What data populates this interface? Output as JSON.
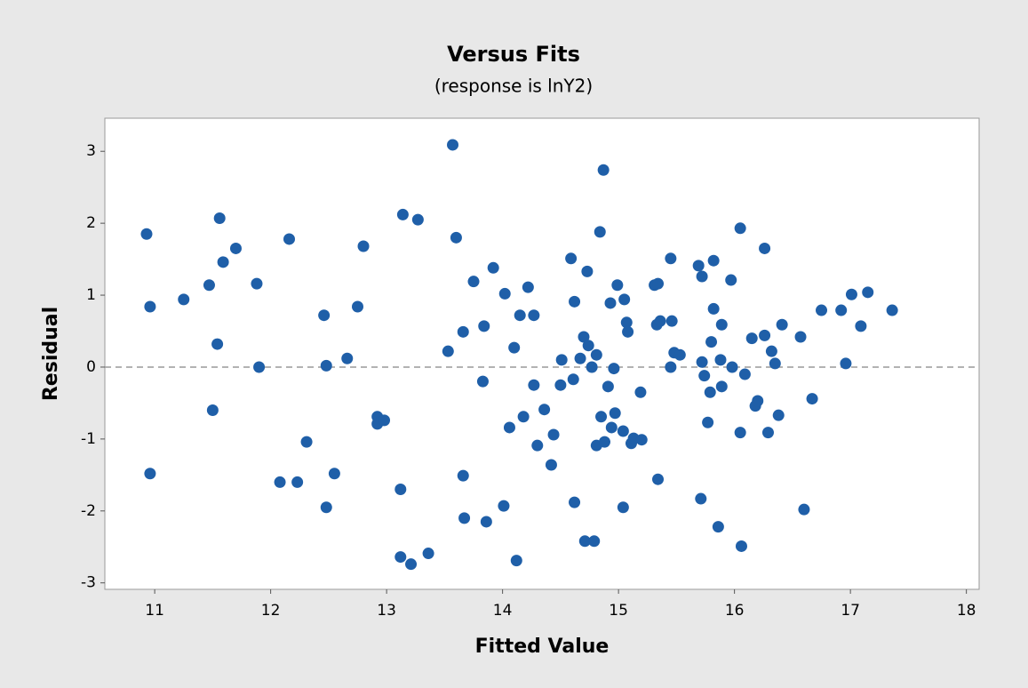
{
  "chart_data": {
    "type": "scatter",
    "title": "Versus Fits",
    "subtitle": "(response is lnY2)",
    "x_label": "Fitted Value",
    "y_label": "Residual",
    "color": "#1f5fa8",
    "reference_line": 0,
    "xlim": [
      10.57,
      18.11
    ],
    "ylim": [
      -3.09,
      3.46
    ],
    "xticks": [
      11,
      12,
      13,
      14,
      15,
      16,
      17,
      18
    ],
    "yticks": [
      -3,
      -2,
      -1,
      0,
      1,
      2,
      3
    ],
    "x": [
      10.93,
      10.96,
      10.96,
      11.25,
      11.47,
      11.5,
      11.54,
      11.56,
      11.59,
      11.7,
      11.88,
      11.9,
      12.08,
      12.16,
      12.23,
      12.31,
      12.46,
      12.48,
      12.48,
      12.55,
      12.66,
      12.75,
      12.8,
      12.92,
      12.92,
      12.98,
      13.12,
      13.14,
      13.12,
      13.21,
      13.27,
      13.36,
      13.53,
      13.57,
      13.6,
      13.66,
      13.66,
      13.67,
      13.75,
      13.83,
      13.84,
      13.86,
      13.92,
      14.01,
      14.02,
      14.06,
      14.1,
      14.12,
      14.15,
      14.18,
      14.22,
      14.27,
      14.27,
      14.3,
      14.36,
      14.42,
      14.44,
      14.5,
      14.51,
      14.59,
      14.61,
      14.62,
      14.62,
      14.67,
      14.7,
      14.71,
      14.73,
      14.74,
      14.77,
      14.79,
      14.81,
      14.81,
      14.84,
      14.85,
      14.87,
      14.88,
      14.91,
      14.93,
      14.94,
      14.96,
      14.97,
      14.99,
      15.05,
      15.07,
      15.08,
      15.04,
      15.11,
      15.13,
      15.04,
      15.2,
      15.19,
      15.31,
      15.33,
      15.34,
      15.34,
      15.36,
      15.45,
      15.45,
      15.46,
      15.48,
      15.53,
      15.69,
      15.71,
      15.72,
      15.72,
      15.74,
      15.77,
      15.79,
      15.8,
      15.82,
      15.82,
      15.86,
      15.88,
      15.89,
      15.89,
      15.97,
      15.98,
      16.05,
      16.06,
      16.05,
      16.09,
      16.15,
      16.18,
      16.2,
      16.26,
      16.26,
      16.29,
      16.32,
      16.35,
      16.38,
      16.41,
      16.57,
      16.6,
      16.67,
      16.75,
      16.92,
      16.96,
      17.01,
      17.09,
      17.15,
      17.36
    ],
    "values": [
      1.85,
      0.84,
      -1.48,
      0.94,
      1.14,
      -0.6,
      0.32,
      2.07,
      1.46,
      1.65,
      1.16,
      0,
      -1.6,
      1.78,
      -1.6,
      -1.04,
      0.72,
      0.02,
      -1.95,
      -1.48,
      0.12,
      0.84,
      1.68,
      -0.69,
      -0.79,
      -0.74,
      -1.7,
      2.12,
      -2.64,
      -2.74,
      2.05,
      -2.59,
      0.22,
      3.09,
      1.8,
      0.49,
      -1.51,
      -2.1,
      1.19,
      -0.2,
      0.57,
      -2.15,
      1.38,
      -1.93,
      1.02,
      -0.84,
      0.27,
      -2.69,
      0.72,
      -0.69,
      1.11,
      -0.25,
      0.72,
      -1.09,
      -0.59,
      -1.36,
      -0.94,
      -0.25,
      0.1,
      1.51,
      -0.17,
      0.91,
      -1.88,
      0.12,
      0.42,
      -2.42,
      1.33,
      0.3,
      0,
      -2.42,
      0.17,
      -1.09,
      1.88,
      -0.69,
      2.74,
      -1.04,
      -0.27,
      0.89,
      -0.84,
      -0.02,
      -0.64,
      1.14,
      0.94,
      0.62,
      0.49,
      -0.89,
      -1.06,
      -0.99,
      -1.95,
      -1.01,
      -0.35,
      1.14,
      0.59,
      1.16,
      -1.56,
      0.64,
      1.51,
      0,
      0.64,
      0.2,
      0.17,
      1.41,
      -1.83,
      0.07,
      1.26,
      -0.12,
      -0.77,
      -0.35,
      0.35,
      1.48,
      0.81,
      -2.22,
      0.1,
      0.59,
      -0.27,
      1.21,
      0,
      -0.91,
      -2.49,
      1.93,
      -0.1,
      0.4,
      -0.54,
      -0.47,
      0.44,
      1.65,
      -0.91,
      0.22,
      0.05,
      -0.67,
      0.59,
      0.42,
      -1.98,
      -0.44,
      0.79,
      0.79,
      0.05,
      1.01,
      0.57,
      1.04,
      0.79
    ]
  }
}
